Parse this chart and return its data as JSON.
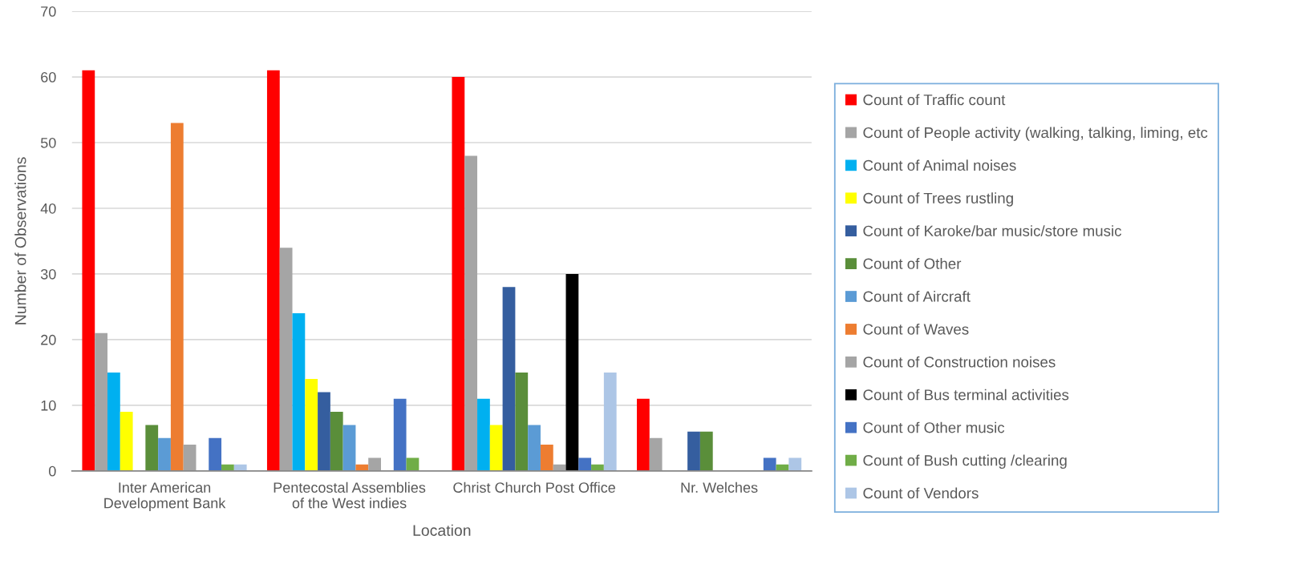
{
  "chart_data": {
    "type": "bar",
    "xlabel": "Location",
    "ylabel": "Number of Observations",
    "categories": [
      "Inter American\nDevelopment Bank",
      "Pentecostal Assemblies\nof the West indies",
      "Christ Church Post Office",
      "Nr. Welches"
    ],
    "ylim": [
      0,
      70
    ],
    "yticks": [
      0,
      10,
      20,
      30,
      40,
      50,
      60,
      70
    ],
    "grid": "y",
    "legend": "right",
    "series": [
      {
        "name": "Count of Traffic count",
        "color": "#ff0000",
        "values": [
          61,
          61,
          60,
          11
        ]
      },
      {
        "name": "Count of People activity (walking, talking, liming, etc",
        "color": "#a5a5a5",
        "values": [
          21,
          34,
          48,
          5
        ]
      },
      {
        "name": "Count of Animal noises",
        "color": "#00b0f0",
        "values": [
          15,
          24,
          11,
          null
        ]
      },
      {
        "name": "Count of Trees rustling",
        "color": "#ffff00",
        "values": [
          9,
          14,
          7,
          null
        ]
      },
      {
        "name": "Count of Karoke/bar music/store music",
        "color": "#355e9f",
        "values": [
          null,
          12,
          28,
          6
        ]
      },
      {
        "name": "Count of Other",
        "color": "#5a8e3a",
        "values": [
          7,
          9,
          15,
          6
        ]
      },
      {
        "name": "Count of Aircraft",
        "color": "#5b9bd5",
        "values": [
          5,
          7,
          7,
          null
        ]
      },
      {
        "name": "Count of Waves",
        "color": "#ed7d31",
        "values": [
          53,
          1,
          4,
          null
        ]
      },
      {
        "name": "Count of Construction noises",
        "color": "#a5a5a5",
        "values": [
          4,
          2,
          1,
          null
        ]
      },
      {
        "name": "Count of Bus terminal activities",
        "color": "#000000",
        "values": [
          null,
          null,
          30,
          null
        ]
      },
      {
        "name": "Count of Other music",
        "color": "#4472c4",
        "values": [
          5,
          11,
          2,
          2
        ]
      },
      {
        "name": "Count of Bush cutting /clearing",
        "color": "#70ad47",
        "values": [
          1,
          2,
          1,
          1
        ]
      },
      {
        "name": "Count of Vendors",
        "color": "#adc6e6",
        "values": [
          1,
          null,
          15,
          2
        ]
      }
    ]
  }
}
